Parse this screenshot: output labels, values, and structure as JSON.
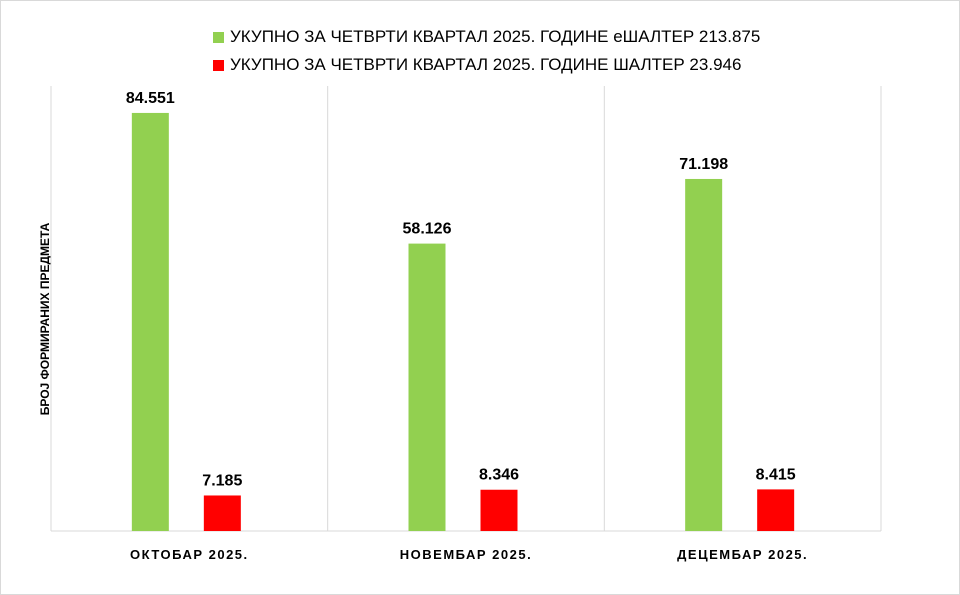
{
  "chart_data": {
    "type": "bar",
    "title": "",
    "xlabel": "",
    "ylabel": "БРОЈ ФОРМИРАНИХ ПРЕДМЕТА",
    "categories": [
      "ОКТОБАР 2025.",
      "НОВЕМБАР 2025.",
      "ДЕЦЕМБАР 2025."
    ],
    "series": [
      {
        "name": "УКУПНО ЗА ЧЕТВРТИ КВАРТАЛ 2025. ГОДИНЕ еШАЛТЕР 213.875",
        "color": "#92d050",
        "values": [
          84551,
          58126,
          71198
        ],
        "labels": [
          "84.551",
          "58.126",
          "71.198"
        ]
      },
      {
        "name": "УКУПНО ЗА ЧЕТВРТИ КВАРТАЛ 2025. ГОДИНЕ ШАЛТЕР 23.946",
        "color": "#ff0000",
        "values": [
          7185,
          8346,
          8415
        ],
        "labels": [
          "7.185",
          "8.346",
          "8.415"
        ]
      }
    ],
    "ylim": [
      0,
      90000
    ],
    "grid": "vertical category separators",
    "legend": "top-center"
  }
}
